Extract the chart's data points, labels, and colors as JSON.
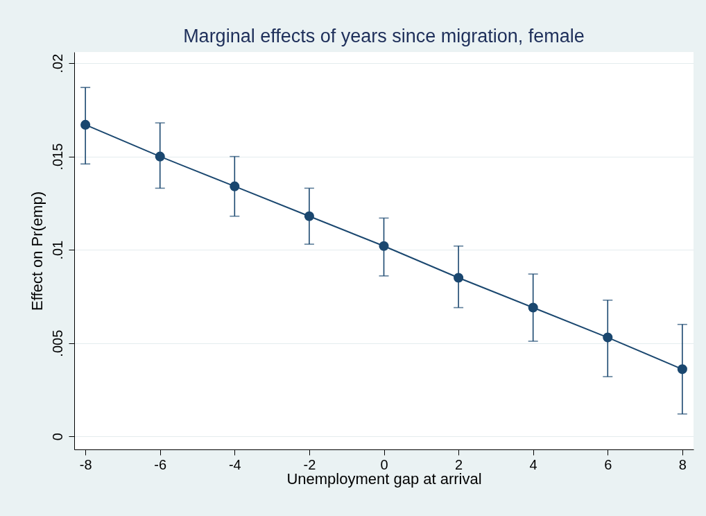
{
  "chart_data": {
    "type": "line",
    "title": "Marginal effects of years since migration, female",
    "xlabel": "Unemployment gap at arrival",
    "ylabel": "Effect on Pr(emp)",
    "x": [
      -8,
      -6,
      -4,
      -2,
      0,
      2,
      4,
      6,
      8
    ],
    "series": [
      {
        "color": "#1a476f",
        "values": [
          0.0167,
          0.015,
          0.0134,
          0.0118,
          0.0102,
          0.0085,
          0.0069,
          0.0053,
          0.0036
        ],
        "errors": [
          [
            0.0146,
            0.0187
          ],
          [
            0.0133,
            0.0168
          ],
          [
            0.0118,
            0.015
          ],
          [
            0.0103,
            0.0133
          ],
          [
            0.0086,
            0.0117
          ],
          [
            0.0069,
            0.0102
          ],
          [
            0.0051,
            0.0087
          ],
          [
            0.0032,
            0.0073
          ],
          [
            0.0012,
            0.006
          ]
        ]
      }
    ],
    "xlim": [
      -8.3,
      8.3
    ],
    "xticks": [
      -8,
      -6,
      -4,
      -2,
      0,
      2,
      4,
      6,
      8
    ],
    "ylim": [
      -0.0007,
      0.0206
    ],
    "yticks": [
      0,
      {
        "value": 0.005,
        "label": ".005"
      },
      {
        "value": 0.01,
        "label": ".01"
      },
      {
        "value": 0.015,
        "label": ".015"
      },
      {
        "value": 0.02,
        "label": ".02"
      }
    ],
    "grid": "y",
    "marker": "circle",
    "line_style": "solid"
  }
}
